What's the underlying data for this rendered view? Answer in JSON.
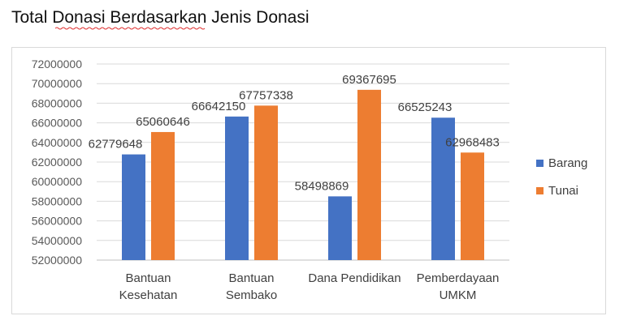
{
  "document": {
    "title": "Total Donasi Berdasarkan Jenis Donasi"
  },
  "chart_data": {
    "type": "bar",
    "title": "",
    "xlabel": "",
    "ylabel": "",
    "categories": [
      [
        "Bantuan",
        "Kesehatan"
      ],
      [
        "Bantuan",
        "Sembako"
      ],
      [
        "Dana Pendidikan"
      ],
      [
        "Pemberdayaan",
        "UMKM"
      ]
    ],
    "series": [
      {
        "name": "Barang",
        "color": "#4472c4",
        "values": [
          62779648,
          66642150,
          58498869,
          66525243
        ]
      },
      {
        "name": "Tunai",
        "color": "#ed7d31",
        "values": [
          65060646,
          67757338,
          69367695,
          62968483
        ]
      }
    ],
    "ylim": [
      52000000,
      72000000
    ],
    "yticks": [
      "52000000",
      "54000000",
      "56000000",
      "58000000",
      "60000000",
      "62000000",
      "64000000",
      "66000000",
      "68000000",
      "70000000",
      "72000000"
    ],
    "grid": true,
    "legend": "right",
    "data_labels": true
  }
}
